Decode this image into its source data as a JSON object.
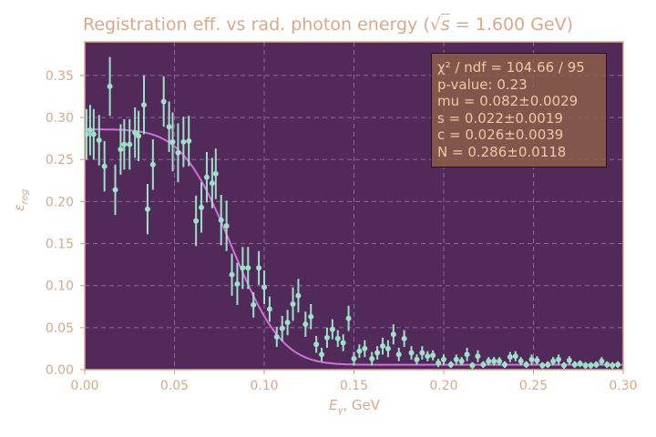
{
  "chart_data": {
    "type": "scatter",
    "title_parts": {
      "prefix": "Registration eff. vs rad. photon energy (",
      "sqrt_symbol": "√",
      "sqrt_arg": "s",
      "suffix": " = 1.600 GeV)"
    },
    "xlabel_parts": {
      "sym": "E",
      "sub": "γ",
      "unit": ", GeV"
    },
    "ylabel_parts": {
      "sym": "ε",
      "sub": "reg"
    },
    "xlim": [
      0.0,
      0.3
    ],
    "ylim": [
      0.0,
      0.39
    ],
    "x_ticks": [
      "0.00",
      "0.05",
      "0.10",
      "0.15",
      "0.20",
      "0.25",
      "0.30"
    ],
    "y_ticks": [
      "0.00",
      "0.05",
      "0.10",
      "0.15",
      "0.20",
      "0.25",
      "0.30",
      "0.35"
    ],
    "grid": true,
    "stats_box": {
      "chi2_label": "χ² / ndf = 104.66 / 95",
      "pvalue": "p-value: 0.23",
      "mu": "mu = 0.082±0.0029",
      "s": "s = 0.022±0.0019",
      "c": "c = 0.026±0.0039",
      "N": "N = 0.286±0.0118"
    },
    "fit": {
      "mu": 0.082,
      "s": 0.022,
      "c": 0.026,
      "N": 0.286,
      "floor": 0.0058
    },
    "points": [
      [
        0.001,
        0.28,
        0.03
      ],
      [
        0.003,
        0.285,
        0.03
      ],
      [
        0.005,
        0.28,
        0.03
      ],
      [
        0.008,
        0.273,
        0.03
      ],
      [
        0.011,
        0.242,
        0.03
      ],
      [
        0.014,
        0.337,
        0.035
      ],
      [
        0.017,
        0.214,
        0.03
      ],
      [
        0.02,
        0.262,
        0.03
      ],
      [
        0.022,
        0.268,
        0.03
      ],
      [
        0.025,
        0.268,
        0.03
      ],
      [
        0.028,
        0.282,
        0.03
      ],
      [
        0.03,
        0.278,
        0.03
      ],
      [
        0.033,
        0.315,
        0.035
      ],
      [
        0.035,
        0.191,
        0.03
      ],
      [
        0.038,
        0.244,
        0.03
      ],
      [
        0.044,
        0.319,
        0.03
      ],
      [
        0.047,
        0.289,
        0.03
      ],
      [
        0.049,
        0.271,
        0.035
      ],
      [
        0.052,
        0.258,
        0.035
      ],
      [
        0.055,
        0.271,
        0.03
      ],
      [
        0.058,
        0.272,
        0.03
      ],
      [
        0.062,
        0.177,
        0.03
      ],
      [
        0.065,
        0.193,
        0.03
      ],
      [
        0.068,
        0.229,
        0.03
      ],
      [
        0.071,
        0.222,
        0.03
      ],
      [
        0.073,
        0.233,
        0.03
      ],
      [
        0.076,
        0.178,
        0.03
      ],
      [
        0.079,
        0.171,
        0.03
      ],
      [
        0.082,
        0.113,
        0.025
      ],
      [
        0.085,
        0.102,
        0.025
      ],
      [
        0.088,
        0.121,
        0.025
      ],
      [
        0.091,
        0.121,
        0.025
      ],
      [
        0.094,
        0.077,
        0.015
      ],
      [
        0.097,
        0.121,
        0.02
      ],
      [
        0.1,
        0.098,
        0.02
      ],
      [
        0.103,
        0.072,
        0.015
      ],
      [
        0.107,
        0.039,
        0.012
      ],
      [
        0.11,
        0.049,
        0.015
      ],
      [
        0.113,
        0.056,
        0.015
      ],
      [
        0.116,
        0.078,
        0.02
      ],
      [
        0.119,
        0.088,
        0.02
      ],
      [
        0.123,
        0.054,
        0.015
      ],
      [
        0.126,
        0.063,
        0.015
      ],
      [
        0.129,
        0.03,
        0.01
      ],
      [
        0.132,
        0.018,
        0.008
      ],
      [
        0.135,
        0.038,
        0.012
      ],
      [
        0.138,
        0.048,
        0.012
      ],
      [
        0.141,
        0.037,
        0.01
      ],
      [
        0.144,
        0.032,
        0.01
      ],
      [
        0.147,
        0.061,
        0.015
      ],
      [
        0.15,
        0.013,
        0.008
      ],
      [
        0.153,
        0.022,
        0.008
      ],
      [
        0.156,
        0.025,
        0.01
      ],
      [
        0.16,
        0.013,
        0.008
      ],
      [
        0.163,
        0.02,
        0.008
      ],
      [
        0.166,
        0.028,
        0.01
      ],
      [
        0.169,
        0.025,
        0.01
      ],
      [
        0.172,
        0.042,
        0.012
      ],
      [
        0.175,
        0.018,
        0.008
      ],
      [
        0.178,
        0.037,
        0.01
      ],
      [
        0.182,
        0.02,
        0.008
      ],
      [
        0.185,
        0.012,
        0.006
      ],
      [
        0.188,
        0.02,
        0.008
      ],
      [
        0.191,
        0.016,
        0.006
      ],
      [
        0.194,
        0.017,
        0.006
      ],
      [
        0.197,
        0.008,
        0.005
      ],
      [
        0.2,
        0.012,
        0.006
      ],
      [
        0.204,
        0.006,
        0.004
      ],
      [
        0.207,
        0.012,
        0.006
      ],
      [
        0.21,
        0.01,
        0.005
      ],
      [
        0.213,
        0.018,
        0.008
      ],
      [
        0.216,
        0.005,
        0.004
      ],
      [
        0.219,
        0.016,
        0.007
      ],
      [
        0.222,
        0.006,
        0.004
      ],
      [
        0.225,
        0.01,
        0.005
      ],
      [
        0.228,
        0.01,
        0.005
      ],
      [
        0.231,
        0.01,
        0.005
      ],
      [
        0.234,
        0.006,
        0.004
      ],
      [
        0.237,
        0.015,
        0.006
      ],
      [
        0.24,
        0.016,
        0.006
      ],
      [
        0.243,
        0.01,
        0.005
      ],
      [
        0.246,
        0.006,
        0.004
      ],
      [
        0.249,
        0.012,
        0.006
      ],
      [
        0.252,
        0.011,
        0.005
      ],
      [
        0.255,
        0.005,
        0.004
      ],
      [
        0.258,
        0.006,
        0.004
      ],
      [
        0.261,
        0.01,
        0.005
      ],
      [
        0.264,
        0.012,
        0.006
      ],
      [
        0.267,
        0.005,
        0.004
      ],
      [
        0.27,
        0.011,
        0.005
      ],
      [
        0.273,
        0.006,
        0.004
      ],
      [
        0.276,
        0.007,
        0.004
      ],
      [
        0.279,
        0.005,
        0.004
      ],
      [
        0.282,
        0.005,
        0.004
      ],
      [
        0.285,
        0.006,
        0.004
      ],
      [
        0.288,
        0.01,
        0.005
      ],
      [
        0.291,
        0.006,
        0.004
      ],
      [
        0.294,
        0.005,
        0.004
      ],
      [
        0.297,
        0.006,
        0.004
      ]
    ]
  },
  "colors": {
    "plot_bg": "#512a59",
    "frame": "#d9a88a",
    "grid": "#8a6a9a",
    "points": "#9fe0c8",
    "fit": "#d070d8",
    "text": "#d9a88a"
  }
}
